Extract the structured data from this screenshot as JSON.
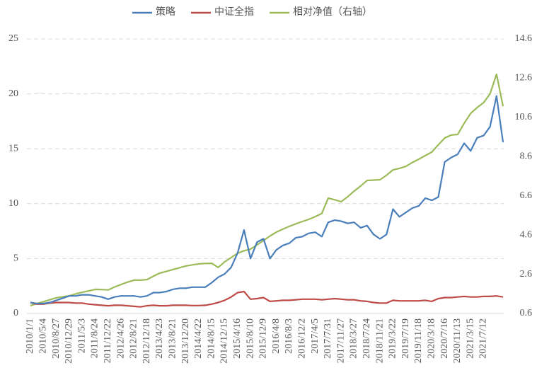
{
  "chart_data": {
    "type": "line",
    "categories": [
      "2010/1/1",
      null,
      "2010/5/4",
      null,
      "2010/8/27",
      null,
      "2010/12/29",
      null,
      "2011/5/3",
      null,
      "2011/8/24",
      null,
      "2011/12/22",
      null,
      "2012/4/26",
      null,
      "2012/8/21",
      null,
      "2012/12/18",
      null,
      "2013/4/23",
      null,
      "2013/8/21",
      null,
      "2013/12/20",
      null,
      "2014/4/22",
      null,
      "2014/8/15",
      null,
      "2014/12/15",
      null,
      "2015/4/16",
      null,
      "2015/8/10",
      null,
      "2015/12/9",
      null,
      "2016/4/8",
      null,
      "2016/8/3",
      null,
      "2016/12/2",
      null,
      "2017/4/5",
      null,
      "2017/7/31",
      null,
      "2017/11/27",
      null,
      "2018/3/27",
      null,
      "2018/7/24",
      null,
      "2018/11/21",
      null,
      "2019/3/22",
      null,
      "2019/7/19",
      null,
      "2019/11/18",
      null,
      "2020/3/18",
      null,
      "2020/7/16",
      null,
      "2020/11/13",
      null,
      "2021/3/15",
      null,
      "2021/7/12",
      null,
      null,
      null
    ],
    "series": [
      {
        "name": "策略",
        "color": "#4a7ebb",
        "values": [
          1.0,
          0.9,
          0.9,
          1.0,
          1.2,
          1.4,
          1.6,
          1.6,
          1.7,
          1.7,
          1.6,
          1.5,
          1.3,
          1.5,
          1.6,
          1.6,
          1.6,
          1.5,
          1.6,
          1.9,
          1.9,
          2.0,
          2.2,
          2.3,
          2.3,
          2.4,
          2.4,
          2.4,
          2.8,
          3.3,
          3.6,
          4.2,
          5.5,
          7.6,
          5.0,
          6.5,
          6.8,
          5.0,
          5.8,
          6.2,
          6.4,
          6.9,
          7.0,
          7.3,
          7.4,
          7.0,
          8.3,
          8.5,
          8.4,
          8.2,
          8.3,
          7.8,
          8.0,
          7.2,
          6.8,
          7.2,
          9.5,
          8.8,
          9.2,
          9.6,
          9.8,
          10.5,
          10.3,
          10.6,
          13.8,
          14.2,
          14.5,
          15.5,
          14.8,
          16.0,
          16.2,
          17.0,
          19.8,
          15.6
        ]
      },
      {
        "name": "中证全指",
        "color": "#be4b48",
        "values": [
          1.0,
          0.85,
          0.85,
          0.95,
          1.0,
          1.0,
          1.0,
          0.95,
          0.95,
          0.85,
          0.8,
          0.75,
          0.7,
          0.75,
          0.75,
          0.7,
          0.65,
          0.6,
          0.7,
          0.75,
          0.7,
          0.7,
          0.75,
          0.75,
          0.75,
          0.72,
          0.72,
          0.75,
          0.85,
          1.0,
          1.2,
          1.5,
          1.9,
          2.0,
          1.3,
          1.35,
          1.45,
          1.1,
          1.15,
          1.2,
          1.2,
          1.25,
          1.3,
          1.3,
          1.3,
          1.25,
          1.3,
          1.35,
          1.3,
          1.25,
          1.25,
          1.15,
          1.1,
          1.0,
          0.95,
          0.95,
          1.2,
          1.15,
          1.15,
          1.15,
          1.15,
          1.2,
          1.1,
          1.35,
          1.45,
          1.45,
          1.5,
          1.55,
          1.5,
          1.5,
          1.55,
          1.55,
          1.6,
          1.5
        ]
      },
      {
        "name": "相对净值（右轴）",
        "color": "#9bbb59",
        "axis": "y2",
        "values": [
          1.0,
          1.1,
          1.2,
          1.3,
          1.4,
          1.45,
          1.5,
          1.6,
          1.68,
          1.75,
          1.83,
          1.82,
          1.8,
          1.95,
          2.08,
          2.2,
          2.3,
          2.3,
          2.33,
          2.5,
          2.66,
          2.75,
          2.84,
          2.93,
          3.02,
          3.08,
          3.13,
          3.15,
          3.16,
          2.95,
          3.23,
          3.45,
          3.67,
          3.8,
          3.88,
          4.1,
          4.32,
          4.55,
          4.75,
          4.9,
          5.04,
          5.17,
          5.29,
          5.4,
          5.54,
          5.7,
          6.48,
          6.4,
          6.3,
          6.55,
          6.84,
          7.1,
          7.38,
          7.4,
          7.42,
          7.65,
          7.92,
          8.0,
          8.1,
          8.3,
          8.47,
          8.65,
          8.83,
          9.2,
          9.55,
          9.7,
          9.73,
          10.3,
          10.8,
          11.1,
          11.35,
          11.8,
          12.8,
          11.17
        ]
      }
    ],
    "ylim": [
      0,
      25
    ],
    "yticks": [
      0,
      5,
      10,
      15,
      20,
      25
    ],
    "y2lim": [
      0.6,
      14.6
    ],
    "y2ticks": [
      0.6,
      2.6,
      4.6,
      6.6,
      8.6,
      10.6,
      12.6,
      14.6
    ],
    "grid": true,
    "legend": "top"
  }
}
